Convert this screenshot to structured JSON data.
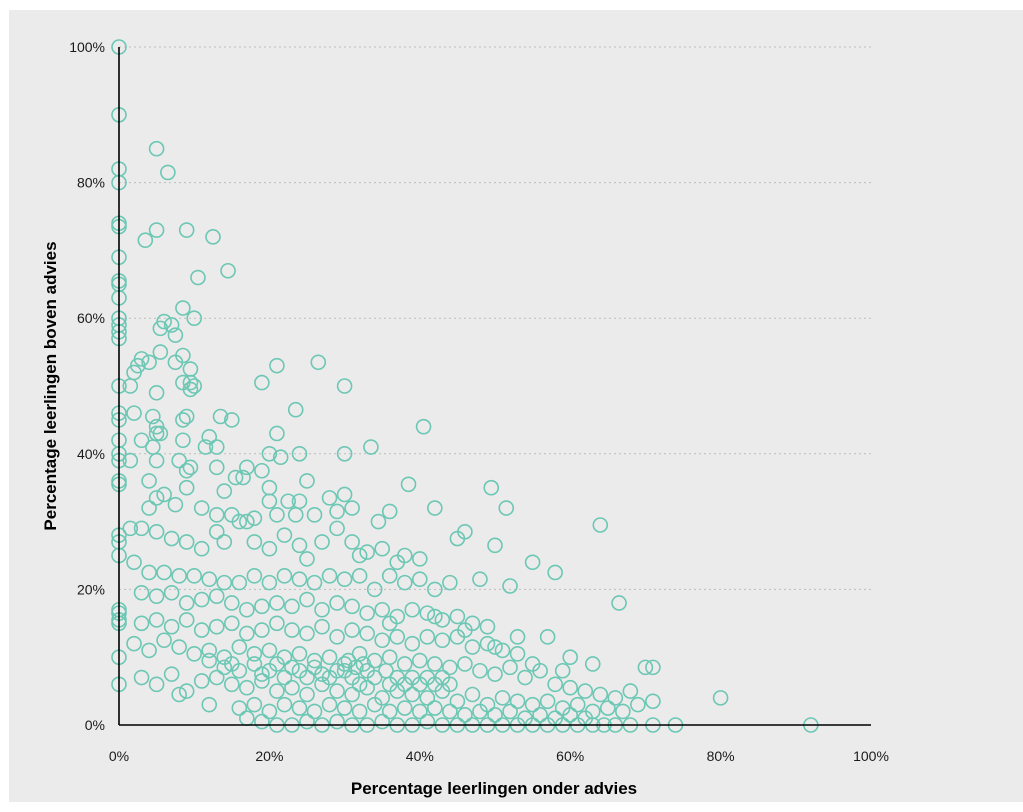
{
  "chart_data": {
    "type": "scatter",
    "title": "",
    "xlabel": "Percentage leerlingen onder advies",
    "ylabel": "Percentage leerlingen boven advies",
    "xlim": [
      0,
      100
    ],
    "ylim": [
      0,
      100
    ],
    "xticks": [
      "0%",
      "20%",
      "40%",
      "60%",
      "80%",
      "100%"
    ],
    "yticks": [
      "0%",
      "20%",
      "40%",
      "60%",
      "80%",
      "100%"
    ],
    "grid": "horizontal dashed",
    "colors": {
      "background": "#ebebeb",
      "marker": "#6cc7b4"
    },
    "points": [
      [
        0,
        100
      ],
      [
        0,
        90
      ],
      [
        0,
        82
      ],
      [
        0,
        80
      ],
      [
        0,
        74
      ],
      [
        0,
        73.5
      ],
      [
        0,
        69
      ],
      [
        0,
        65.5
      ],
      [
        0,
        65
      ],
      [
        0,
        63
      ],
      [
        0,
        60
      ],
      [
        0,
        59
      ],
      [
        0,
        58
      ],
      [
        0,
        57
      ],
      [
        0,
        50
      ],
      [
        0,
        46
      ],
      [
        0,
        45
      ],
      [
        0,
        42
      ],
      [
        0,
        40
      ],
      [
        0,
        39
      ],
      [
        0,
        36
      ],
      [
        0,
        35.5
      ],
      [
        0,
        28
      ],
      [
        0,
        27
      ],
      [
        0,
        25
      ],
      [
        0,
        17
      ],
      [
        0,
        16.5
      ],
      [
        0,
        15.5
      ],
      [
        0,
        15
      ],
      [
        0,
        10
      ],
      [
        0,
        6
      ],
      [
        5,
        85
      ],
      [
        6.5,
        81.5
      ],
      [
        9,
        73
      ],
      [
        5,
        73
      ],
      [
        12.5,
        72
      ],
      [
        3.5,
        71.5
      ],
      [
        14.5,
        67
      ],
      [
        10.5,
        66
      ],
      [
        8.5,
        61.5
      ],
      [
        10,
        60
      ],
      [
        6,
        59.5
      ],
      [
        7,
        59
      ],
      [
        5.5,
        58.5
      ],
      [
        7.5,
        57.5
      ],
      [
        5.5,
        55
      ],
      [
        3,
        54
      ],
      [
        8.5,
        54.5
      ],
      [
        7.5,
        53.5
      ],
      [
        4,
        53.5
      ],
      [
        2.5,
        53
      ],
      [
        9.5,
        52.5
      ],
      [
        21,
        53
      ],
      [
        26.5,
        53.5
      ],
      [
        2,
        52
      ],
      [
        1.5,
        50
      ],
      [
        8.5,
        50.5
      ],
      [
        9.5,
        50.5
      ],
      [
        10,
        50
      ],
      [
        19,
        50.5
      ],
      [
        30,
        50
      ],
      [
        9.5,
        49.5
      ],
      [
        5,
        49
      ],
      [
        2,
        46
      ],
      [
        4.5,
        45.5
      ],
      [
        9,
        45.5
      ],
      [
        13.5,
        45.5
      ],
      [
        15,
        45
      ],
      [
        8.5,
        45
      ],
      [
        5,
        44
      ],
      [
        5,
        43
      ],
      [
        5.5,
        43
      ],
      [
        40.5,
        44
      ],
      [
        23.5,
        46.5
      ],
      [
        21,
        43
      ],
      [
        12,
        42.5
      ],
      [
        3,
        42
      ],
      [
        4.5,
        41
      ],
      [
        8.5,
        42
      ],
      [
        11.5,
        41
      ],
      [
        13,
        41
      ],
      [
        33.5,
        41
      ],
      [
        24,
        40
      ],
      [
        20,
        40
      ],
      [
        30,
        40
      ],
      [
        21.5,
        39.5
      ],
      [
        1.5,
        39
      ],
      [
        5,
        39
      ],
      [
        8,
        39
      ],
      [
        9.5,
        38
      ],
      [
        9,
        37.5
      ],
      [
        13,
        38
      ],
      [
        17,
        38
      ],
      [
        19,
        37.5
      ],
      [
        20,
        35
      ],
      [
        15.5,
        36.5
      ],
      [
        16.5,
        36.5
      ],
      [
        25,
        36
      ],
      [
        4,
        36
      ],
      [
        38.5,
        35.5
      ],
      [
        49.5,
        35
      ],
      [
        9,
        35
      ],
      [
        14,
        34.5
      ],
      [
        20,
        33
      ],
      [
        22.5,
        33
      ],
      [
        24,
        33
      ],
      [
        28,
        33.5
      ],
      [
        30,
        34
      ],
      [
        31,
        32
      ],
      [
        36,
        31.5
      ],
      [
        42,
        32
      ],
      [
        51.5,
        32
      ],
      [
        5,
        33.5
      ],
      [
        6,
        34
      ],
      [
        7.5,
        32.5
      ],
      [
        4,
        32
      ],
      [
        11,
        32
      ],
      [
        13,
        31
      ],
      [
        15,
        31
      ],
      [
        16,
        30
      ],
      [
        17,
        30
      ],
      [
        18,
        30.5
      ],
      [
        21,
        31
      ],
      [
        23.5,
        31
      ],
      [
        26,
        31
      ],
      [
        29,
        31.5
      ],
      [
        34.5,
        30
      ],
      [
        46,
        28.5
      ],
      [
        64,
        29.5
      ],
      [
        48,
        21.5
      ],
      [
        1.5,
        29
      ],
      [
        3,
        29
      ],
      [
        5,
        28.5
      ],
      [
        7,
        27.5
      ],
      [
        9,
        27
      ],
      [
        11,
        26
      ],
      [
        13,
        28.5
      ],
      [
        14,
        27
      ],
      [
        18,
        27
      ],
      [
        20,
        26
      ],
      [
        22,
        28
      ],
      [
        24,
        26.5
      ],
      [
        25,
        24.5
      ],
      [
        27,
        27
      ],
      [
        29,
        29
      ],
      [
        31,
        27
      ],
      [
        32,
        25
      ],
      [
        33,
        25.5
      ],
      [
        35,
        26
      ],
      [
        37,
        24
      ],
      [
        38,
        25
      ],
      [
        40,
        24.5
      ],
      [
        45,
        27.5
      ],
      [
        50,
        26.5
      ],
      [
        55,
        24
      ],
      [
        58,
        22.5
      ],
      [
        2,
        24
      ],
      [
        4,
        22.5
      ],
      [
        6,
        22.5
      ],
      [
        8,
        22
      ],
      [
        10,
        22
      ],
      [
        12,
        21.5
      ],
      [
        14,
        21
      ],
      [
        16,
        21
      ],
      [
        18,
        22
      ],
      [
        20,
        21
      ],
      [
        22,
        22
      ],
      [
        24,
        21.5
      ],
      [
        26,
        21
      ],
      [
        28,
        22
      ],
      [
        30,
        21.5
      ],
      [
        32,
        22
      ],
      [
        34,
        20
      ],
      [
        36,
        22
      ],
      [
        38,
        21
      ],
      [
        40,
        21.5
      ],
      [
        42,
        20
      ],
      [
        44,
        21
      ],
      [
        52,
        20.5
      ],
      [
        66.5,
        18
      ],
      [
        3,
        19.5
      ],
      [
        5,
        19
      ],
      [
        7,
        19.5
      ],
      [
        9,
        18
      ],
      [
        11,
        18.5
      ],
      [
        13,
        19
      ],
      [
        15,
        18
      ],
      [
        17,
        17
      ],
      [
        19,
        17.5
      ],
      [
        21,
        18
      ],
      [
        23,
        17.5
      ],
      [
        25,
        18.5
      ],
      [
        27,
        17
      ],
      [
        29,
        18
      ],
      [
        31,
        17.5
      ],
      [
        33,
        16.5
      ],
      [
        35,
        17
      ],
      [
        37,
        16
      ],
      [
        39,
        17
      ],
      [
        41,
        16.5
      ],
      [
        43,
        15.5
      ],
      [
        45,
        16
      ],
      [
        47,
        15
      ],
      [
        49,
        14.5
      ],
      [
        53,
        13
      ],
      [
        57,
        13
      ],
      [
        60,
        10
      ],
      [
        3,
        15
      ],
      [
        5,
        15.5
      ],
      [
        7,
        14.5
      ],
      [
        9,
        15.5
      ],
      [
        11,
        14
      ],
      [
        13,
        14.5
      ],
      [
        15,
        15
      ],
      [
        17,
        13.5
      ],
      [
        19,
        14
      ],
      [
        21,
        15
      ],
      [
        23,
        14
      ],
      [
        25,
        13.5
      ],
      [
        27,
        14.5
      ],
      [
        29,
        13
      ],
      [
        31,
        14
      ],
      [
        33,
        13.5
      ],
      [
        35,
        12.5
      ],
      [
        37,
        13
      ],
      [
        39,
        12
      ],
      [
        41,
        13
      ],
      [
        43,
        12.5
      ],
      [
        45,
        13
      ],
      [
        47,
        11.5
      ],
      [
        49,
        12
      ],
      [
        51,
        11
      ],
      [
        53,
        10.5
      ],
      [
        55,
        9
      ],
      [
        59,
        8
      ],
      [
        63,
        9
      ],
      [
        2,
        12
      ],
      [
        4,
        11
      ],
      [
        6,
        12.5
      ],
      [
        8,
        11.5
      ],
      [
        10,
        10.5
      ],
      [
        12,
        11
      ],
      [
        14,
        10
      ],
      [
        16,
        11.5
      ],
      [
        18,
        10.5
      ],
      [
        20,
        11
      ],
      [
        22,
        10
      ],
      [
        24,
        10.5
      ],
      [
        26,
        9.5
      ],
      [
        28,
        10
      ],
      [
        30,
        9
      ],
      [
        32,
        10.5
      ],
      [
        34,
        9.5
      ],
      [
        36,
        10
      ],
      [
        38,
        9
      ],
      [
        40,
        9.5
      ],
      [
        42,
        9
      ],
      [
        44,
        8.5
      ],
      [
        46,
        9
      ],
      [
        48,
        8
      ],
      [
        50,
        7.5
      ],
      [
        52,
        8.5
      ],
      [
        54,
        7
      ],
      [
        56,
        8
      ],
      [
        58,
        6
      ],
      [
        60,
        5.5
      ],
      [
        62,
        5
      ],
      [
        64,
        4.5
      ],
      [
        66,
        4
      ],
      [
        68,
        5
      ],
      [
        70,
        8.5
      ],
      [
        71,
        8.5
      ],
      [
        3,
        7
      ],
      [
        5,
        6
      ],
      [
        7,
        7.5
      ],
      [
        9,
        5
      ],
      [
        11,
        6.5
      ],
      [
        13,
        7
      ],
      [
        15,
        6
      ],
      [
        17,
        5.5
      ],
      [
        19,
        6.5
      ],
      [
        21,
        5
      ],
      [
        23,
        5.5
      ],
      [
        25,
        4.5
      ],
      [
        27,
        6
      ],
      [
        29,
        5
      ],
      [
        31,
        4.5
      ],
      [
        33,
        5.5
      ],
      [
        35,
        4
      ],
      [
        37,
        5
      ],
      [
        39,
        4.5
      ],
      [
        41,
        4
      ],
      [
        43,
        5
      ],
      [
        45,
        3.5
      ],
      [
        47,
        4.5
      ],
      [
        49,
        3
      ],
      [
        51,
        4
      ],
      [
        53,
        3.5
      ],
      [
        55,
        3
      ],
      [
        57,
        3.5
      ],
      [
        59,
        2.5
      ],
      [
        61,
        3
      ],
      [
        63,
        2
      ],
      [
        65,
        2.5
      ],
      [
        67,
        2
      ],
      [
        69,
        3
      ],
      [
        71,
        3.5
      ],
      [
        80,
        4
      ],
      [
        8,
        4.5
      ],
      [
        12,
        3
      ],
      [
        16,
        2.5
      ],
      [
        18,
        3
      ],
      [
        20,
        2
      ],
      [
        22,
        3
      ],
      [
        24,
        2.5
      ],
      [
        26,
        2
      ],
      [
        28,
        3
      ],
      [
        30,
        2.5
      ],
      [
        32,
        2
      ],
      [
        34,
        3
      ],
      [
        36,
        2
      ],
      [
        38,
        2.5
      ],
      [
        40,
        2
      ],
      [
        42,
        2.5
      ],
      [
        44,
        2
      ],
      [
        46,
        1.5
      ],
      [
        48,
        2
      ],
      [
        50,
        1.5
      ],
      [
        52,
        2
      ],
      [
        54,
        1
      ],
      [
        56,
        1.5
      ],
      [
        58,
        1
      ],
      [
        60,
        1.5
      ],
      [
        62,
        1
      ],
      [
        17,
        1
      ],
      [
        19,
        0.5
      ],
      [
        21,
        0
      ],
      [
        23,
        0
      ],
      [
        25,
        0.5
      ],
      [
        27,
        0
      ],
      [
        29,
        0.5
      ],
      [
        31,
        0
      ],
      [
        33,
        0
      ],
      [
        35,
        0.5
      ],
      [
        37,
        0
      ],
      [
        39,
        0
      ],
      [
        41,
        0.5
      ],
      [
        43,
        0
      ],
      [
        45,
        0
      ],
      [
        47,
        0
      ],
      [
        49,
        0
      ],
      [
        51,
        0
      ],
      [
        53,
        0
      ],
      [
        55,
        0
      ],
      [
        57,
        0
      ],
      [
        59,
        0
      ],
      [
        61,
        0
      ],
      [
        63,
        0
      ],
      [
        64.5,
        0
      ],
      [
        66,
        0
      ],
      [
        68,
        0
      ],
      [
        71,
        0
      ],
      [
        74,
        0
      ],
      [
        92,
        0
      ],
      [
        30,
        8
      ],
      [
        31,
        7
      ],
      [
        32,
        6
      ],
      [
        33,
        8
      ],
      [
        34,
        7
      ],
      [
        36,
        6
      ],
      [
        37,
        7
      ],
      [
        38,
        6
      ],
      [
        39,
        7
      ],
      [
        40,
        6
      ],
      [
        41,
        7
      ],
      [
        42,
        6
      ],
      [
        43,
        7
      ],
      [
        44,
        6
      ],
      [
        30.5,
        9.5
      ],
      [
        31.5,
        8.5
      ],
      [
        32.5,
        9
      ],
      [
        35.5,
        8
      ],
      [
        24,
        8
      ],
      [
        25,
        7
      ],
      [
        26,
        8.5
      ],
      [
        27,
        7.5
      ],
      [
        28,
        7
      ],
      [
        29,
        8
      ],
      [
        20,
        8
      ],
      [
        21,
        9
      ],
      [
        22,
        7
      ],
      [
        23,
        8.5
      ],
      [
        18,
        9
      ],
      [
        19,
        7.5
      ],
      [
        15,
        9
      ],
      [
        16,
        8
      ],
      [
        14,
        8.5
      ],
      [
        12,
        9.5
      ],
      [
        36,
        15
      ],
      [
        42,
        16
      ],
      [
        46,
        14
      ],
      [
        50,
        11.5
      ]
    ]
  }
}
